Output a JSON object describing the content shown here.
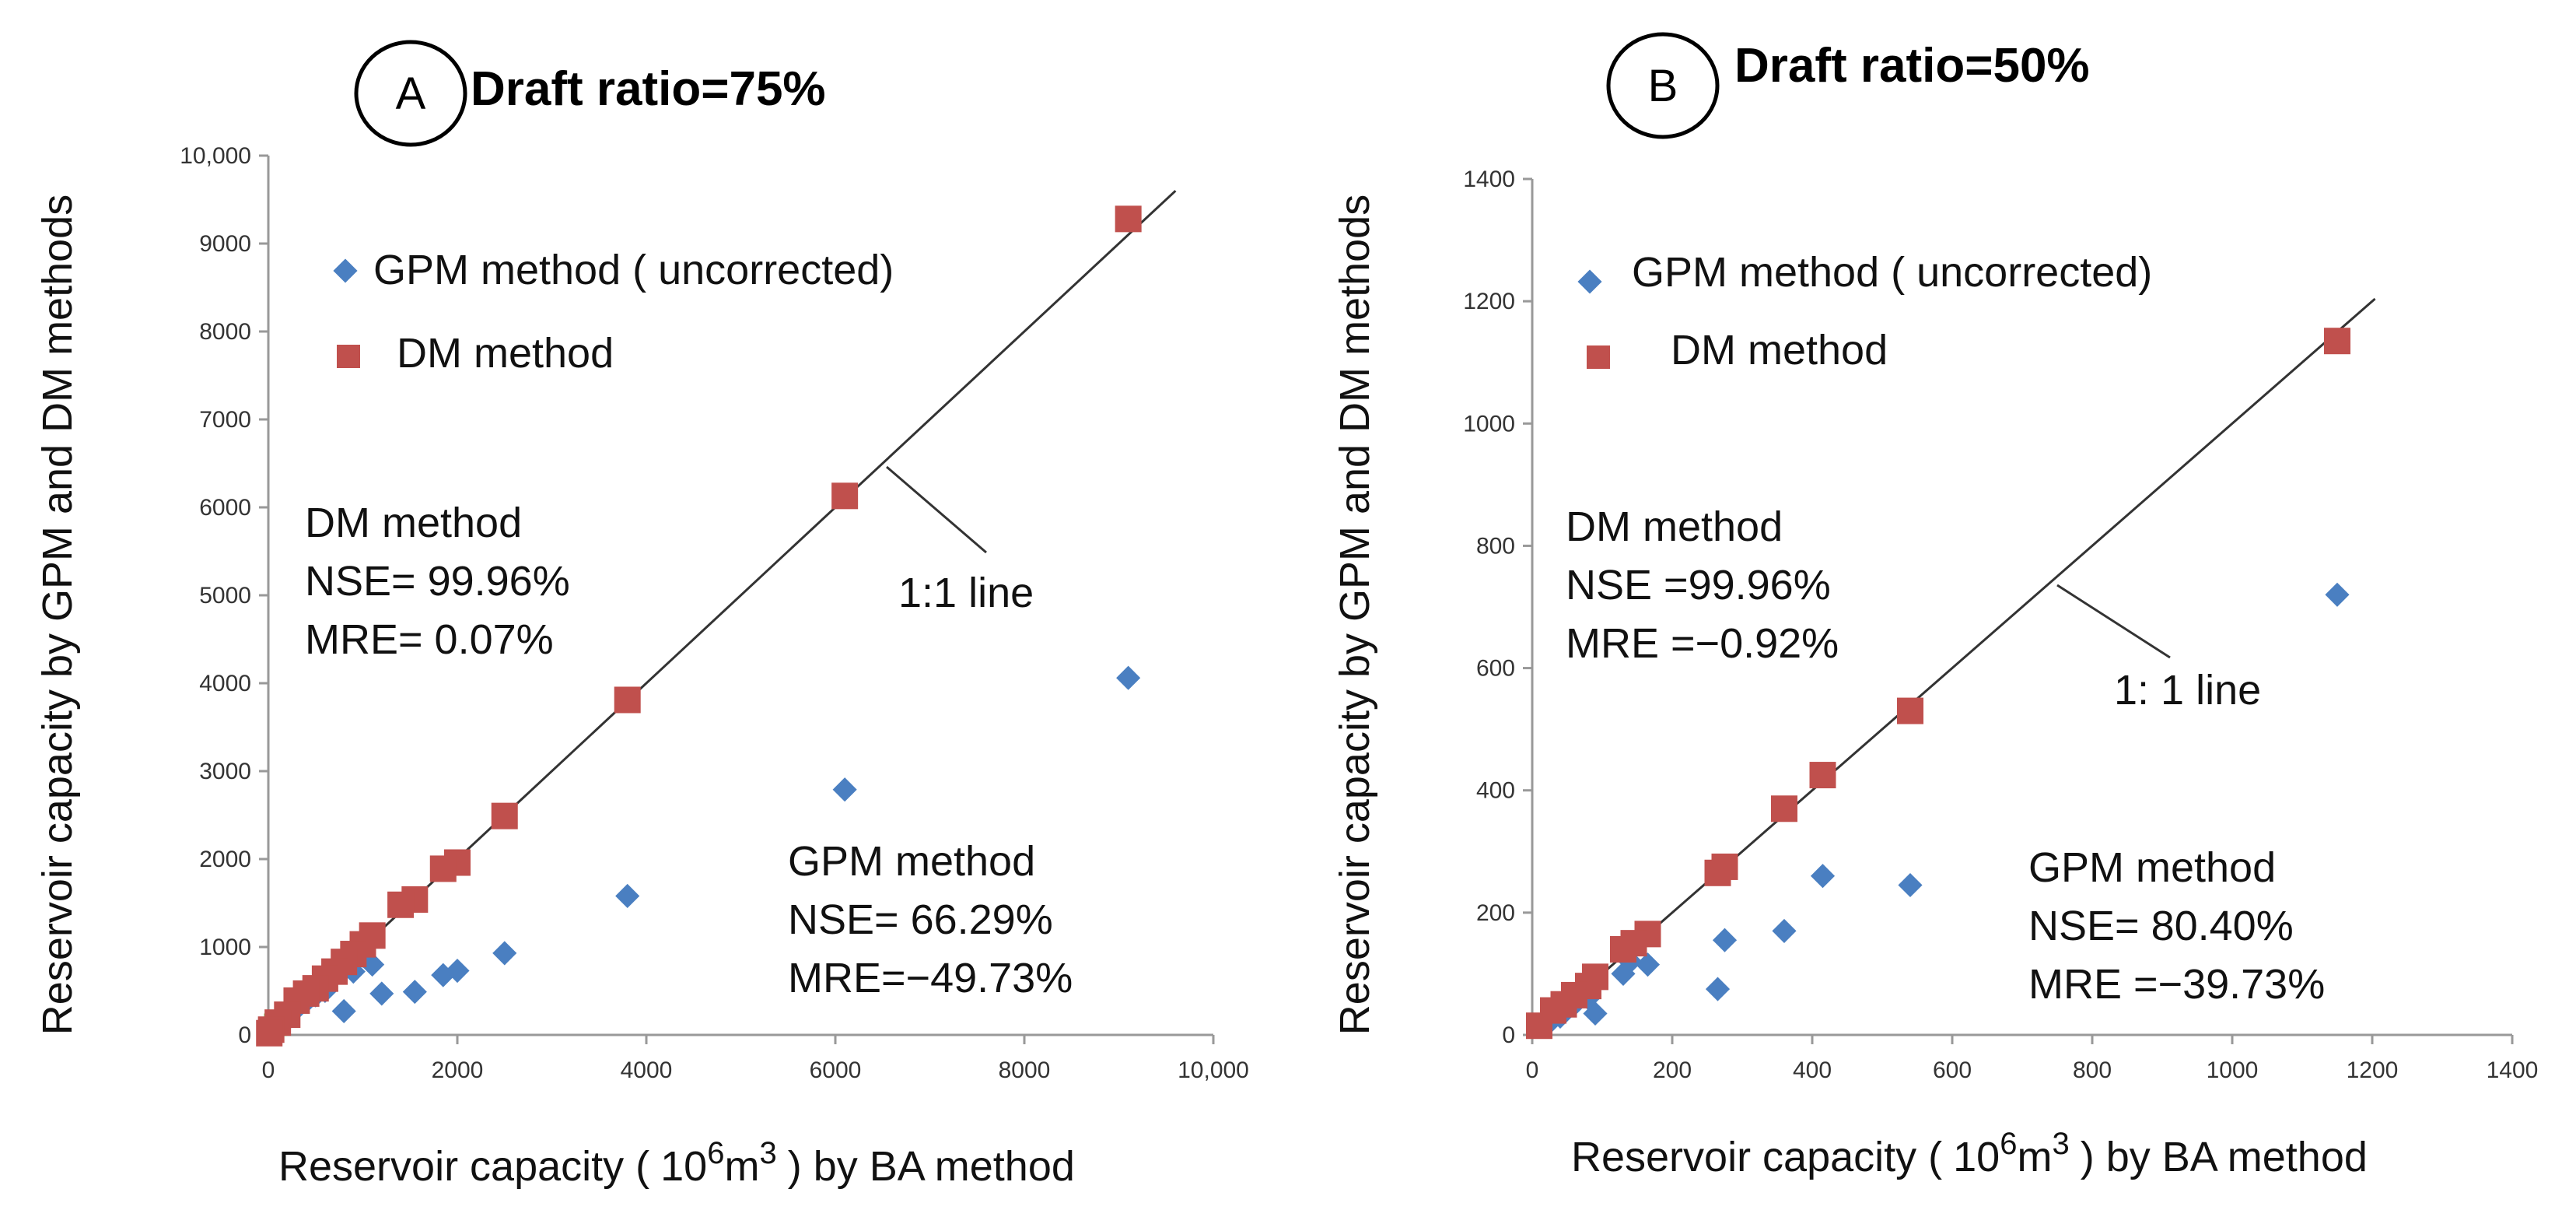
{
  "colors": {
    "gpm": "#4a7fc1",
    "dm": "#c0504d",
    "line": "#333333",
    "axis": "#999999",
    "origin": "#76b041"
  },
  "chart_data": [
    {
      "type": "scatter",
      "panel_letter": "A",
      "title": "Draft ratio=75%",
      "xlabel_prefix": "Reservoir capacity (",
      "xlabel_base": "10",
      "xlabel_exp": "6",
      "xlabel_unit": "m",
      "xlabel_unit_exp": "3",
      "xlabel_suffix": ") by BA method",
      "ylabel": "Reservoir capacity by GPM and DM methods",
      "xlim": [
        0,
        10000
      ],
      "ylim": [
        0,
        10000
      ],
      "xticks": [
        0,
        2000,
        4000,
        6000,
        8000,
        10000
      ],
      "xtick_labels": [
        "0",
        "2000",
        "4000",
        "6000",
        "8000",
        "10,000"
      ],
      "yticks": [
        0,
        1000,
        2000,
        3000,
        4000,
        5000,
        6000,
        7000,
        8000,
        9000,
        10000
      ],
      "ytick_labels": [
        "0",
        "1000",
        "2000",
        "3000",
        "4000",
        "5000",
        "6000",
        "7000",
        "8000",
        "9000",
        "10,000"
      ],
      "legend": [
        "GPM method ( uncorrected)",
        "DM method"
      ],
      "series": [
        {
          "name": "GPM method ( uncorrected)",
          "points": [
            [
              9100,
              4060
            ],
            [
              6100,
              2790
            ],
            [
              3800,
              1580
            ],
            [
              2500,
              930
            ],
            [
              2000,
              730
            ],
            [
              1850,
              680
            ],
            [
              1550,
              490
            ],
            [
              1200,
              470
            ],
            [
              1100,
              800
            ],
            [
              1000,
              900
            ],
            [
              900,
              720
            ],
            [
              800,
              270
            ],
            [
              700,
              680
            ],
            [
              600,
              500
            ],
            [
              500,
              450
            ],
            [
              400,
              380
            ],
            [
              300,
              300
            ],
            [
              200,
              170
            ],
            [
              100,
              50
            ],
            [
              50,
              20
            ]
          ]
        },
        {
          "name": "DM method",
          "points": [
            [
              9100,
              9280
            ],
            [
              6100,
              6130
            ],
            [
              3800,
              3810
            ],
            [
              2500,
              2490
            ],
            [
              2000,
              1960
            ],
            [
              1850,
              1890
            ],
            [
              1550,
              1540
            ],
            [
              1400,
              1480
            ],
            [
              1100,
              1130
            ],
            [
              1000,
              1030
            ],
            [
              900,
              920
            ],
            [
              800,
              830
            ],
            [
              700,
              720
            ],
            [
              600,
              640
            ],
            [
              500,
              530
            ],
            [
              400,
              470
            ],
            [
              300,
              390
            ],
            [
              200,
              230
            ],
            [
              100,
              140
            ],
            [
              30,
              60
            ],
            [
              10,
              20
            ]
          ]
        }
      ],
      "line_label": "1:1 line",
      "annotations": {
        "dm": [
          "DM method",
          "NSE= 99.96%",
          "MRE= 0.07%"
        ],
        "gpm": [
          "GPM method",
          "NSE= 66.29%",
          "MRE=−49.73%"
        ]
      }
    },
    {
      "type": "scatter",
      "panel_letter": "B",
      "title": "Draft ratio=50%",
      "xlabel_prefix": "Reservoir capacity (",
      "xlabel_base": "10",
      "xlabel_exp": "6",
      "xlabel_unit": "m",
      "xlabel_unit_exp": "3",
      "xlabel_suffix": ") by BA method",
      "ylabel": "Reservoir capacity by GPM and DM methods",
      "xlim": [
        0,
        1400
      ],
      "ylim": [
        0,
        1400
      ],
      "xticks": [
        0,
        200,
        400,
        600,
        800,
        1000,
        1200,
        1400
      ],
      "xtick_labels": [
        "0",
        "200",
        "400",
        "600",
        "800",
        "1000",
        "1200",
        "1400"
      ],
      "yticks": [
        0,
        200,
        400,
        600,
        800,
        1000,
        1200,
        1400
      ],
      "ytick_labels": [
        "0",
        "200",
        "400",
        "600",
        "800",
        "1000",
        "1200",
        "1400"
      ],
      "legend": [
        "GPM method ( uncorrected)",
        "DM method"
      ],
      "series": [
        {
          "name": "GPM method ( uncorrected)",
          "points": [
            [
              1150,
              720
            ],
            [
              540,
              245
            ],
            [
              415,
              260
            ],
            [
              360,
              170
            ],
            [
              275,
              155
            ],
            [
              265,
              75
            ],
            [
              165,
              115
            ],
            [
              140,
              120
            ],
            [
              130,
              100
            ],
            [
              90,
              35
            ],
            [
              80,
              60
            ],
            [
              60,
              50
            ],
            [
              40,
              30
            ],
            [
              20,
              15
            ]
          ]
        },
        {
          "name": "DM method",
          "points": [
            [
              1150,
              1135
            ],
            [
              540,
              530
            ],
            [
              415,
              425
            ],
            [
              360,
              370
            ],
            [
              275,
              275
            ],
            [
              265,
              265
            ],
            [
              165,
              165
            ],
            [
              145,
              150
            ],
            [
              130,
              140
            ],
            [
              90,
              95
            ],
            [
              80,
              80
            ],
            [
              60,
              65
            ],
            [
              45,
              50
            ],
            [
              30,
              40
            ],
            [
              10,
              15
            ]
          ]
        }
      ],
      "line_label": "1: 1 line",
      "annotations": {
        "dm": [
          "DM method",
          "NSE =99.96%",
          "MRE =−0.92%"
        ],
        "gpm": [
          "GPM method",
          "NSE= 80.40%",
          "MRE =−39.73%"
        ]
      }
    }
  ]
}
